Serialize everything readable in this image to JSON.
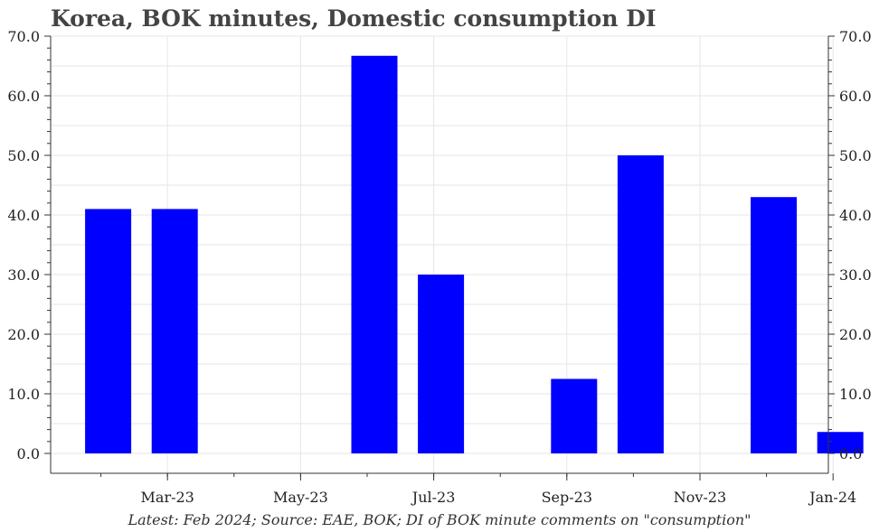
{
  "chart_data": {
    "type": "bar",
    "title": "Korea, BOK minutes, Domestic consumption DI",
    "footer": "Latest: Feb 2024; Source: EAE, BOK; DI of BOK minute comments on \"consumption\"",
    "categories": [
      "Feb-23",
      "Mar-23",
      "Apr-23",
      "May-23",
      "Jun-23",
      "Jul-23",
      "Aug-23",
      "Sep-23",
      "Oct-23",
      "Nov-23",
      "Dec-23",
      "Jan-24",
      "Feb-24"
    ],
    "values": [
      41.0,
      41.0,
      null,
      null,
      66.7,
      30.0,
      null,
      12.5,
      50.0,
      null,
      43.0,
      3.6,
      null
    ],
    "x_tick_labels": [
      "Mar-23",
      "May-23",
      "Jul-23",
      "Sep-23",
      "Nov-23",
      "Jan-24"
    ],
    "y_ticks": [
      0.0,
      10.0,
      20.0,
      30.0,
      40.0,
      50.0,
      60.0,
      70.0
    ],
    "y_tick_labels": [
      "0.0",
      "10.0",
      "20.0",
      "30.0",
      "40.0",
      "50.0",
      "60.0",
      "70.0"
    ],
    "ylim": [
      0,
      70
    ],
    "xlabel": "",
    "ylabel": "",
    "bar_color": "#0000ff",
    "grid": true
  }
}
